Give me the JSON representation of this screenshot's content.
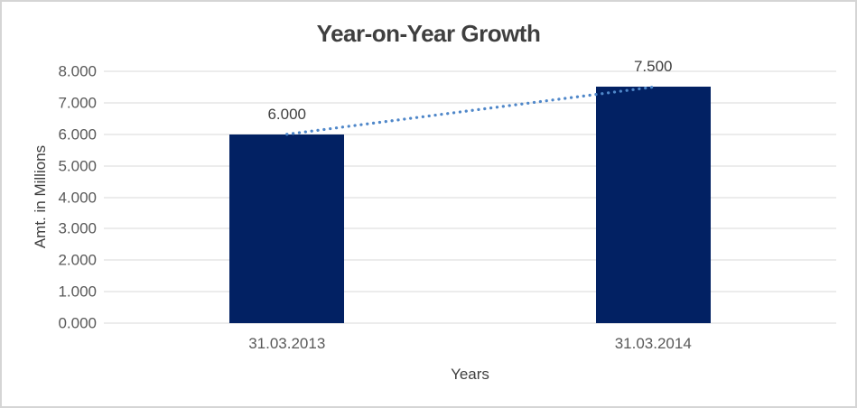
{
  "chart_data": {
    "type": "bar",
    "title": "Year-on-Year Growth",
    "categories": [
      "31.03.2013",
      "31.03.2014"
    ],
    "values": [
      6.0,
      7.5
    ],
    "value_labels": [
      "6.000",
      "7.500"
    ],
    "xlabel": "Years",
    "ylabel": "Amt. in Millions",
    "ylim": [
      0,
      8
    ],
    "ytick_step": 1,
    "ytick_labels": [
      "0.000",
      "1.000",
      "2.000",
      "3.000",
      "4.000",
      "5.000",
      "6.000",
      "7.000",
      "8.000"
    ],
    "grid": true,
    "legend": false,
    "bar_color": "#022163",
    "trendline": {
      "style": "dotted",
      "color": "#4f87c9",
      "points": [
        [
          0,
          6.0
        ],
        [
          1,
          7.5
        ]
      ]
    }
  }
}
